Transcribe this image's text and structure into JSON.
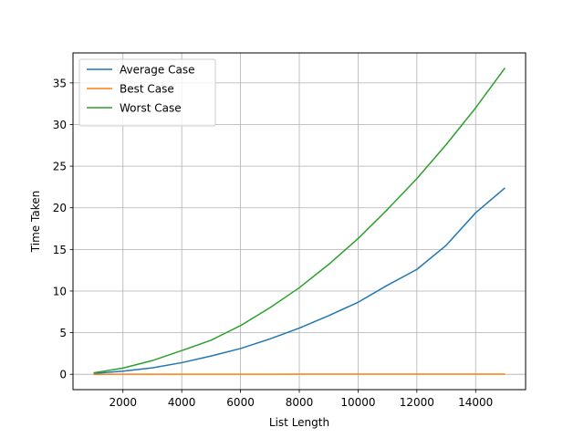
{
  "chart_data": {
    "type": "line",
    "title": "",
    "xlabel": "List Length",
    "ylabel": "Time Taken",
    "xlim": [
      300,
      15700
    ],
    "ylim": [
      -1.84,
      38.6
    ],
    "x_ticks": [
      2000,
      4000,
      6000,
      8000,
      10000,
      12000,
      14000
    ],
    "y_ticks": [
      0,
      5,
      10,
      15,
      20,
      25,
      30,
      35
    ],
    "grid": true,
    "legend_position": "top-left",
    "x": [
      1000,
      2000,
      3000,
      4000,
      5000,
      6000,
      7000,
      8000,
      9000,
      10000,
      11000,
      12000,
      13000,
      14000,
      15000
    ],
    "series": [
      {
        "name": "Average Case",
        "color": "#1f77b4",
        "values": [
          0.1,
          0.38,
          0.78,
          1.4,
          2.2,
          3.1,
          4.25,
          5.55,
          7.05,
          8.65,
          10.7,
          12.6,
          15.5,
          19.4,
          22.4
        ]
      },
      {
        "name": "Best Case",
        "color": "#ff7f0e",
        "values": [
          0.002,
          0.004,
          0.006,
          0.008,
          0.01,
          0.012,
          0.014,
          0.016,
          0.018,
          0.02,
          0.022,
          0.024,
          0.026,
          0.028,
          0.03
        ]
      },
      {
        "name": "Worst Case",
        "color": "#2ca02c",
        "values": [
          0.18,
          0.75,
          1.65,
          2.85,
          4.1,
          5.85,
          8.0,
          10.4,
          13.2,
          16.3,
          19.8,
          23.5,
          27.6,
          32.0,
          36.8
        ]
      }
    ]
  }
}
